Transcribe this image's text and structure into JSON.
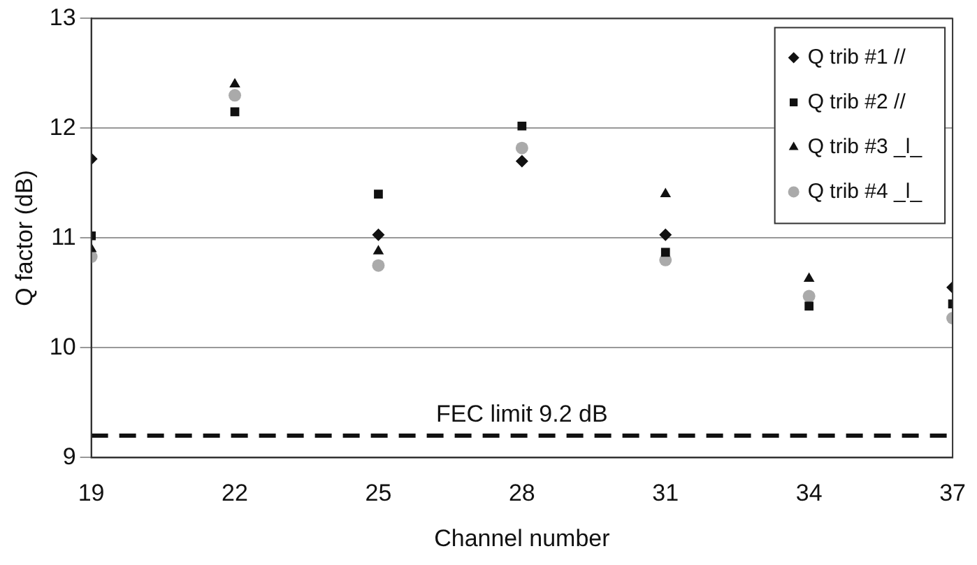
{
  "chart_data": {
    "type": "scatter",
    "xlabel": "Channel number",
    "ylabel": "Q factor (dB)",
    "x": [
      19,
      22,
      25,
      28,
      31,
      34,
      37
    ],
    "series": [
      {
        "name": "Q trib #1 //",
        "color": "#111111",
        "marker": "diamond",
        "values": [
          11.72,
          null,
          11.03,
          11.7,
          11.03,
          null,
          10.55
        ]
      },
      {
        "name": "Q trib #2 //",
        "color": "#111111",
        "marker": "square",
        "values": [
          11.02,
          12.15,
          11.4,
          12.02,
          10.87,
          10.38,
          10.4
        ]
      },
      {
        "name": "Q trib #3 _l_",
        "color": "#111111",
        "marker": "triangle",
        "values": [
          10.9,
          12.4,
          10.88,
          null,
          11.4,
          10.63,
          null
        ]
      },
      {
        "name": "Q trib #4 _l_",
        "color": "#aaaaaa",
        "marker": "circle",
        "values": [
          10.83,
          12.3,
          10.75,
          11.82,
          10.8,
          10.47,
          10.27
        ]
      }
    ],
    "xlim": [
      19,
      37
    ],
    "xticks": [
      19,
      22,
      25,
      28,
      31,
      34,
      37
    ],
    "ylim": [
      9,
      13
    ],
    "yticks": [
      9,
      10,
      11,
      12,
      13
    ],
    "grid": "y",
    "legend": "top right",
    "ref_lines": [
      {
        "axis": "y",
        "value": 9.2,
        "label": "FEC limit 9.2 dB",
        "color": "#111111",
        "line_style": "dashed"
      }
    ]
  }
}
